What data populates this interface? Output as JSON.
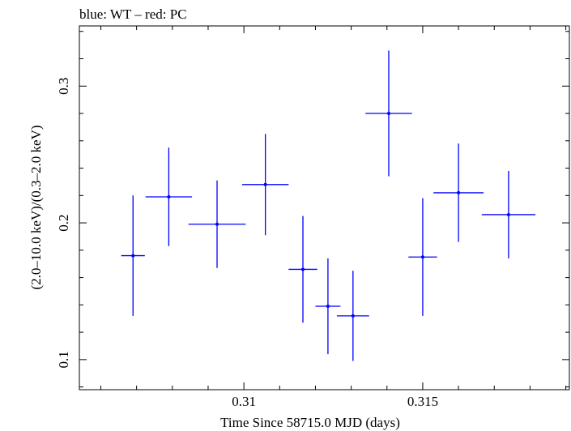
{
  "chart_data": {
    "type": "scatter",
    "title": "blue: WT – red: PC",
    "xlabel": "Time Since 58715.0 MJD (days)",
    "ylabel": "(2.0–10.0 keV)/(0.3–2.0 keV)",
    "xlim": [
      0.3054,
      0.3191
    ],
    "ylim": [
      0.078,
      0.344
    ],
    "x_ticks": [
      {
        "value": 0.31,
        "label": "0.31"
      },
      {
        "value": 0.315,
        "label": "0.315"
      }
    ],
    "y_ticks": [
      {
        "value": 0.1,
        "label": "0.1"
      },
      {
        "value": 0.2,
        "label": "0.2"
      },
      {
        "value": 0.3,
        "label": "0.3"
      }
    ],
    "grid": false,
    "series": [
      {
        "color": "#0000ff",
        "points": [
          {
            "x": 0.3069,
            "xerr": 0.00033,
            "y": 0.176,
            "yerr": 0.044
          },
          {
            "x": 0.3079,
            "xerr": 0.00065,
            "y": 0.219,
            "yerr": 0.036
          },
          {
            "x": 0.30925,
            "xerr": 0.0008,
            "y": 0.199,
            "yerr": 0.032
          },
          {
            "x": 0.3106,
            "xerr": 0.00065,
            "y": 0.228,
            "yerr": 0.037
          },
          {
            "x": 0.31165,
            "xerr": 0.0004,
            "y": 0.166,
            "yerr": 0.039
          },
          {
            "x": 0.31235,
            "xerr": 0.00035,
            "y": 0.139,
            "yerr": 0.035
          },
          {
            "x": 0.31305,
            "xerr": 0.00045,
            "y": 0.132,
            "yerr": 0.033
          },
          {
            "x": 0.31405,
            "xerr": 0.00065,
            "y": 0.28,
            "yerr": 0.046
          },
          {
            "x": 0.315,
            "xerr": 0.0004,
            "y": 0.175,
            "yerr": 0.043
          },
          {
            "x": 0.316,
            "xerr": 0.0007,
            "y": 0.222,
            "yerr": 0.036
          },
          {
            "x": 0.3174,
            "xerr": 0.00075,
            "y": 0.206,
            "yerr": 0.032
          }
        ]
      }
    ]
  }
}
